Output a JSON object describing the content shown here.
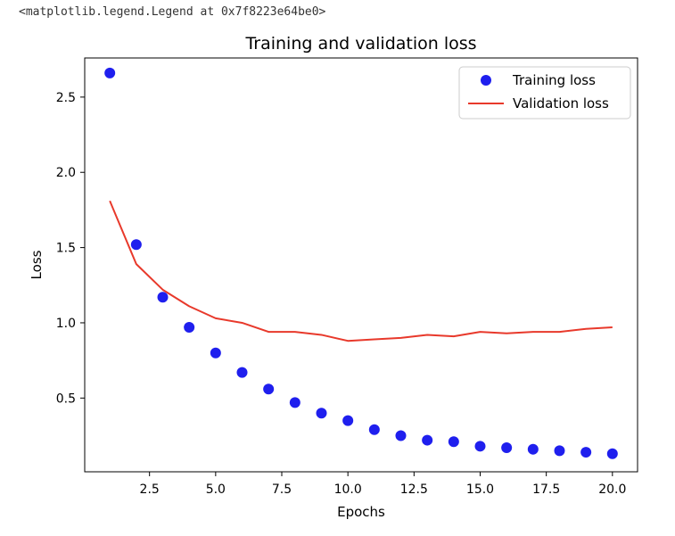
{
  "output_text": "<matplotlib.legend.Legend at 0x7f8223e64be0>",
  "chart_data": {
    "type": "line",
    "title": "Training and validation loss",
    "xlabel": "Epochs",
    "ylabel": "Loss",
    "xlim": [
      0.05,
      20.95
    ],
    "ylim": [
      0.01,
      2.76
    ],
    "xticks": [
      2.5,
      5.0,
      7.5,
      10.0,
      12.5,
      15.0,
      17.5,
      20.0
    ],
    "xtick_labels": [
      "2.5",
      "5.0",
      "7.5",
      "10.0",
      "12.5",
      "15.0",
      "17.5",
      "20.0"
    ],
    "yticks": [
      0.5,
      1.0,
      1.5,
      2.0,
      2.5
    ],
    "ytick_labels": [
      "0.5",
      "1.0",
      "1.5",
      "2.0",
      "2.5"
    ],
    "grid": false,
    "legend_position": "top-right",
    "x": [
      1,
      2,
      3,
      4,
      5,
      6,
      7,
      8,
      9,
      10,
      11,
      12,
      13,
      14,
      15,
      16,
      17,
      18,
      19,
      20
    ],
    "series": [
      {
        "name": "Training loss",
        "style": "markers",
        "color": "#1f1fee",
        "values": [
          2.66,
          1.52,
          1.17,
          0.97,
          0.8,
          0.67,
          0.56,
          0.47,
          0.4,
          0.35,
          0.29,
          0.25,
          0.22,
          0.21,
          0.18,
          0.17,
          0.16,
          0.15,
          0.14,
          0.13
        ]
      },
      {
        "name": "Validation loss",
        "style": "line",
        "color": "#e8392b",
        "values": [
          1.81,
          1.39,
          1.22,
          1.11,
          1.03,
          1.0,
          0.94,
          0.94,
          0.92,
          0.88,
          0.89,
          0.9,
          0.92,
          0.91,
          0.94,
          0.93,
          0.94,
          0.94,
          0.96,
          0.97
        ]
      }
    ]
  }
}
